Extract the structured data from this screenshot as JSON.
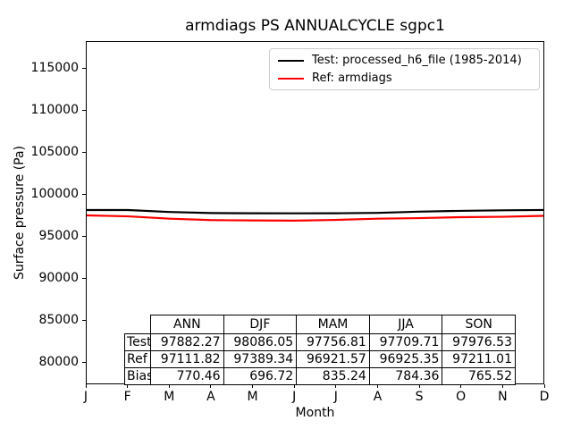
{
  "title": "armdiags PS ANNUALCYCLE sgpc1",
  "axes": {
    "xlabel": "Month",
    "ylabel": "Surface pressure (Pa)"
  },
  "legend": {
    "entries": [
      {
        "label": "Test: processed_h6_file (1985-2014)",
        "color": "#000000"
      },
      {
        "label": "Ref: armdiags",
        "color": "#ff0000"
      }
    ]
  },
  "chart_data": {
    "type": "line",
    "title": "armdiags PS ANNUALCYCLE sgpc1",
    "xlabel": "Month",
    "ylabel": "Surface pressure (Pa)",
    "categories": [
      "J",
      "F",
      "M",
      "A",
      "M",
      "J",
      "J",
      "A",
      "S",
      "O",
      "N",
      "D"
    ],
    "series": [
      {
        "name": "Test: processed_h6_file (1985-2014)",
        "color": "#000000",
        "values": [
          98085,
          98080,
          97850,
          97720,
          97700,
          97690,
          97700,
          97740,
          97890,
          97990,
          98050,
          98095
        ]
      },
      {
        "name": "Ref: armdiags",
        "color": "#ff0000",
        "values": [
          97450,
          97330,
          97050,
          96880,
          96835,
          96820,
          96900,
          97055,
          97120,
          97230,
          97280,
          97390
        ]
      }
    ],
    "yticks": [
      80000,
      85000,
      90000,
      95000,
      100000,
      105000,
      110000,
      115000
    ],
    "ylim": [
      77340,
      118190
    ],
    "grid": false,
    "legend_position": "upper right",
    "line_width": 2
  },
  "table": {
    "col_headers": [
      "ANN",
      "DJF",
      "MAM",
      "JJA",
      "SON"
    ],
    "rows": [
      {
        "label": "Test",
        "values": [
          "97882.27",
          "98086.05",
          "97756.81",
          "97709.71",
          "97976.53"
        ]
      },
      {
        "label": "Ref",
        "values": [
          "97111.82",
          "97389.34",
          "96921.57",
          "96925.35",
          "97211.01"
        ]
      },
      {
        "label": "Bias",
        "values": [
          "770.46",
          "696.72",
          "835.24",
          "784.36",
          "765.52"
        ]
      }
    ]
  }
}
